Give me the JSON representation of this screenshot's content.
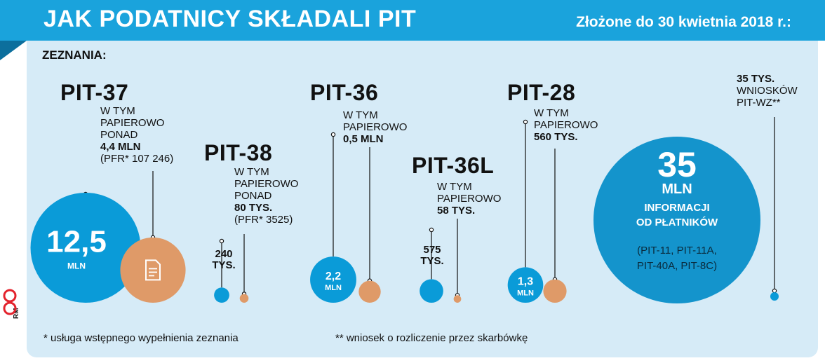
{
  "header": {
    "title": "JAK PODATNICY SKŁADALI PIT",
    "subtitle": "Złożone do 30 kwietnia 2018 r.:"
  },
  "section_label": "ZEZNANIA:",
  "colors": {
    "header_blue": "#1aa3dc",
    "panel_bg": "#d6ebf7",
    "total_circle": "#0a9bd8",
    "paper_circle": "#df9a68",
    "big_info_circle": "#1494cc"
  },
  "chart_data": {
    "type": "bubble",
    "unit": "MLN",
    "series": [
      {
        "name": "PIT-37",
        "total_label": "12,5",
        "total_unit": "MLN",
        "total_value": 12.5,
        "paper_value": 4.4,
        "note": [
          "W TYM",
          "PAPIEROWO",
          "PONAD"
        ],
        "note_value": "4,4 MLN",
        "note_extra": "(PFR* 107 246)"
      },
      {
        "name": "PIT-38",
        "total_label": "240",
        "total_unit": "TYS.",
        "total_value": 0.24,
        "paper_value": 0.08,
        "note": [
          "W TYM",
          "PAPIEROWO",
          "PONAD"
        ],
        "note_value": "80 TYS.",
        "note_extra": "(PFR* 3525)"
      },
      {
        "name": "PIT-36",
        "total_label": "2,2",
        "total_unit": "MLN",
        "total_value": 2.2,
        "paper_value": 0.5,
        "note": [
          "W TYM",
          "PAPIEROWO"
        ],
        "note_value": "0,5 MLN",
        "note_extra": ""
      },
      {
        "name": "PIT-36L",
        "total_label": "575",
        "total_unit": "TYS.",
        "total_value": 0.575,
        "paper_value": 0.058,
        "note": [
          "W TYM",
          "PAPIEROWO"
        ],
        "note_value": "58 TYS.",
        "note_extra": ""
      },
      {
        "name": "PIT-28",
        "total_label": "1,3",
        "total_unit": "MLN",
        "total_value": 1.3,
        "paper_value": 0.56,
        "note": [
          "W TYM",
          "PAPIEROWO"
        ],
        "note_value": "560 TYS.",
        "note_extra": ""
      }
    ],
    "info": {
      "value_label": "35",
      "unit": "MLN",
      "value": 35,
      "title": [
        "INFORMACJI",
        "OD PŁATNIKÓW"
      ],
      "detail": [
        "(PIT-11, PIT-11A,",
        "PIT-40A, PIT-8C)"
      ]
    },
    "wz": {
      "value": 0.035,
      "lines": [
        "35 TYS.",
        "WNIOSKÓW",
        "PIT-WZ**"
      ]
    }
  },
  "footnotes": {
    "pfr": "* usługa wstępnego wypełnienia zeznania",
    "wz": "** wniosek o rozliczenie przez skarbówkę"
  },
  "credit": "RM",
  "logo_letters": "CP"
}
